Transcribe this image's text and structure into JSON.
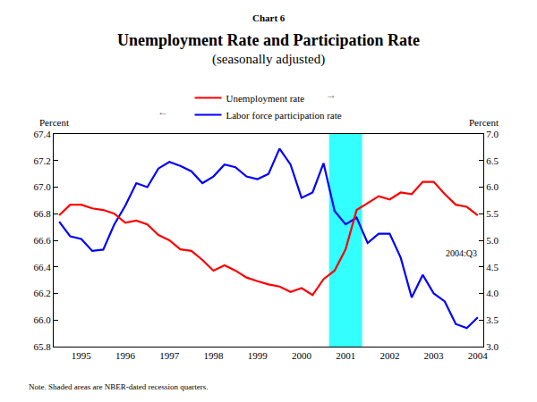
{
  "chart_data": {
    "type": "line",
    "chart_label": "Chart 6",
    "title": "Unemployment Rate and Participation Rate",
    "subtitle": "(seasonally adjusted)",
    "ylabel": "Percent",
    "y2label": "Percent",
    "note": "Note. Shaded areas are NBER-dated recession quarters.",
    "annotations": [
      "2004:Q3"
    ],
    "categories": [
      null,
      null,
      "1995",
      null,
      null,
      null,
      "1996",
      null,
      null,
      null,
      "1997",
      null,
      null,
      null,
      "1998",
      null,
      null,
      null,
      "1999",
      null,
      null,
      null,
      "2000",
      null,
      null,
      null,
      "2001",
      null,
      null,
      null,
      "2002",
      null,
      null,
      null,
      "2003",
      null,
      null,
      null,
      "2004"
    ],
    "series": [
      {
        "name": "Unemployment rate",
        "color": "#ff0000",
        "axis": "y2",
        "axis_arrow": "→",
        "values": [
          5.47,
          5.67,
          5.67,
          5.6,
          5.57,
          5.5,
          5.33,
          5.37,
          5.3,
          5.1,
          5.0,
          4.83,
          4.8,
          4.63,
          4.43,
          4.53,
          4.43,
          4.3,
          4.23,
          4.17,
          4.13,
          4.03,
          4.1,
          3.97,
          4.27,
          4.43,
          4.83,
          5.57,
          5.7,
          5.83,
          5.77,
          5.9,
          5.87,
          6.1,
          6.1,
          5.87,
          5.67,
          5.63,
          5.47
        ]
      },
      {
        "name": "Labor force participation rate",
        "color": "#0000ff",
        "axis": "y",
        "axis_arrow": "←",
        "values": [
          66.74,
          66.63,
          66.61,
          66.52,
          66.53,
          66.72,
          66.86,
          67.03,
          67.0,
          67.14,
          67.19,
          67.16,
          67.12,
          67.03,
          67.08,
          67.17,
          67.15,
          67.08,
          67.06,
          67.1,
          67.29,
          67.17,
          66.92,
          66.96,
          67.18,
          66.82,
          66.72,
          66.77,
          66.58,
          66.65,
          66.65,
          66.47,
          66.17,
          66.34,
          66.2,
          66.14,
          65.97,
          65.94,
          66.02
        ]
      }
    ],
    "recession": {
      "start": 25,
      "end": 27,
      "color": "#33ffff"
    },
    "ylim": [
      65.8,
      67.4
    ],
    "yticks": [
      65.8,
      {
        "value": 66,
        "label": "66.0"
      },
      66.2,
      66.4,
      66.6,
      66.8,
      {
        "value": 67,
        "label": "67.0"
      },
      67.2,
      67.4
    ],
    "y2lim": [
      3,
      7
    ],
    "y2ticks": [
      {
        "value": 3,
        "label": "3.0"
      },
      3.5,
      {
        "value": 4,
        "label": "4.0"
      },
      4.5,
      {
        "value": 5,
        "label": "5.0"
      },
      5.5,
      {
        "value": 6,
        "label": "6.0"
      },
      6.5,
      {
        "value": 7,
        "label": "7.0"
      }
    ],
    "grid": false
  }
}
